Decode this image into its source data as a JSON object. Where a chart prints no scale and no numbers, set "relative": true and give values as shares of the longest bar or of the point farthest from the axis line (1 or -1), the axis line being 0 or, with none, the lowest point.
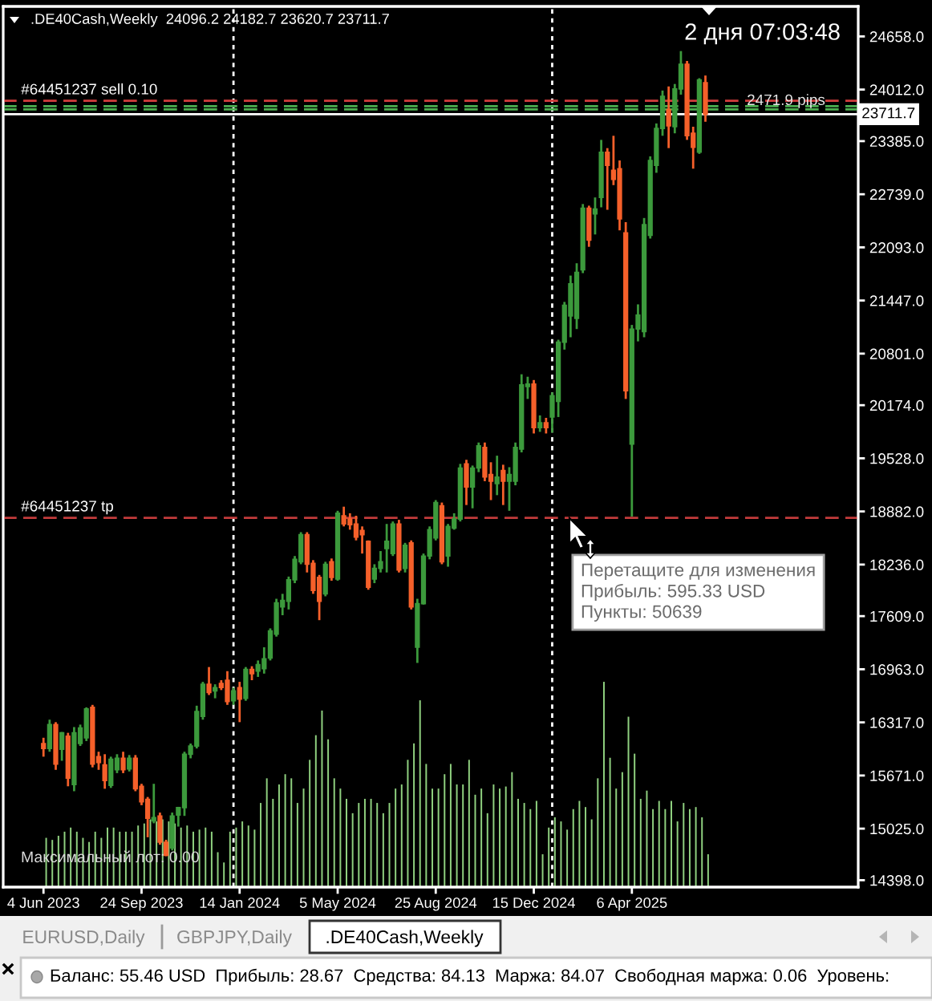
{
  "chart_data": [
    {
      "type": "candlestick",
      "title": ".DE40Cash,Weekly  24096.2 24182.7 23620.7 23711.7",
      "x": [
        "2023-06-04",
        "2023-06-11",
        "2023-06-18",
        "2023-06-25",
        "2023-07-02",
        "2023-07-09",
        "2023-07-16",
        "2023-07-23",
        "2023-07-30",
        "2023-08-06",
        "2023-08-13",
        "2023-08-20",
        "2023-08-27",
        "2023-09-03",
        "2023-09-10",
        "2023-09-17",
        "2023-09-24",
        "2023-10-01",
        "2023-10-08",
        "2023-10-15",
        "2023-10-22",
        "2023-10-29",
        "2023-11-05",
        "2023-11-12",
        "2023-11-19",
        "2023-11-26",
        "2023-12-03",
        "2023-12-10",
        "2023-12-17",
        "2023-12-24",
        "2023-12-31",
        "2024-01-07",
        "2024-01-14",
        "2024-01-21",
        "2024-01-28",
        "2024-02-04",
        "2024-02-11",
        "2024-02-18",
        "2024-02-25",
        "2024-03-03",
        "2024-03-10",
        "2024-03-17",
        "2024-03-24",
        "2024-03-31",
        "2024-04-07",
        "2024-04-14",
        "2024-04-21",
        "2024-04-28",
        "2024-05-05",
        "2024-05-12",
        "2024-05-19",
        "2024-05-26",
        "2024-06-02",
        "2024-06-09",
        "2024-06-16",
        "2024-06-23",
        "2024-06-30",
        "2024-07-07",
        "2024-07-14",
        "2024-07-21",
        "2024-07-28",
        "2024-08-04",
        "2024-08-11",
        "2024-08-18",
        "2024-08-25",
        "2024-09-01",
        "2024-09-08",
        "2024-09-15",
        "2024-09-22",
        "2024-09-29",
        "2024-10-06",
        "2024-10-13",
        "2024-10-20",
        "2024-10-27",
        "2024-11-03",
        "2024-11-10",
        "2024-11-17",
        "2024-11-24",
        "2024-12-01",
        "2024-12-08",
        "2024-12-15",
        "2024-12-22",
        "2024-12-29",
        "2025-01-05",
        "2025-01-12",
        "2025-01-19",
        "2025-01-26",
        "2025-02-02",
        "2025-02-09",
        "2025-02-16",
        "2025-02-23",
        "2025-03-02",
        "2025-03-09",
        "2025-03-16",
        "2025-03-23",
        "2025-03-30",
        "2025-04-06",
        "2025-04-13",
        "2025-04-20",
        "2025-04-27",
        "2025-05-04",
        "2025-05-11",
        "2025-05-18",
        "2025-05-25",
        "2025-06-01",
        "2025-06-08",
        "2025-06-15",
        "2025-06-22",
        "2025-06-29"
      ],
      "ohlc": [
        [
          16060,
          16130,
          15900,
          16000
        ],
        [
          16000,
          16350,
          15960,
          16290
        ],
        [
          16290,
          16320,
          15740,
          15810
        ],
        [
          15990,
          16200,
          15850,
          16190
        ],
        [
          16150,
          16190,
          15540,
          15640
        ],
        [
          15560,
          16260,
          15480,
          16190
        ],
        [
          16060,
          16290,
          16030,
          16250
        ],
        [
          16130,
          16500,
          16090,
          16480
        ],
        [
          16500,
          16530,
          15770,
          15810
        ],
        [
          15900,
          15960,
          15740,
          15830
        ],
        [
          15800,
          15930,
          15510,
          15610
        ],
        [
          15550,
          15900,
          15520,
          15870
        ],
        [
          15740,
          15930,
          15700,
          15880
        ],
        [
          15880,
          15960,
          15700,
          15740
        ],
        [
          15750,
          15920,
          15720,
          15880
        ],
        [
          15880,
          15920,
          15480,
          15510
        ],
        [
          15540,
          15570,
          15310,
          15350
        ],
        [
          15380,
          15410,
          14920,
          15150
        ],
        [
          15120,
          15570,
          15090,
          15160
        ],
        [
          15180,
          15220,
          14830,
          14860
        ],
        [
          14860,
          14890,
          14690,
          14700
        ],
        [
          14790,
          15220,
          14760,
          15180
        ],
        [
          15190,
          15290,
          15050,
          15280
        ],
        [
          15280,
          15960,
          15180,
          15930
        ],
        [
          15930,
          16060,
          15880,
          16030
        ],
        [
          16030,
          16520,
          16000,
          16450
        ],
        [
          16390,
          16810,
          16350,
          16780
        ],
        [
          16780,
          16990,
          16650,
          16680
        ],
        [
          16700,
          16780,
          16610,
          16740
        ],
        [
          16790,
          16830,
          16710,
          16740
        ],
        [
          16830,
          16940,
          16530,
          16570
        ],
        [
          16580,
          16740,
          16530,
          16700
        ],
        [
          16740,
          16810,
          16320,
          16600
        ],
        [
          16610,
          16990,
          16580,
          16960
        ],
        [
          16960,
          17000,
          16830,
          16910
        ],
        [
          16940,
          17070,
          16870,
          17020
        ],
        [
          16970,
          17230,
          16910,
          17090
        ],
        [
          17100,
          17460,
          17070,
          17430
        ],
        [
          17390,
          17820,
          17360,
          17770
        ],
        [
          17720,
          17880,
          17620,
          17800
        ],
        [
          17790,
          18090,
          17690,
          18050
        ],
        [
          18050,
          18340,
          18010,
          18300
        ],
        [
          18270,
          18630,
          18240,
          18600
        ],
        [
          18600,
          18630,
          18140,
          18240
        ],
        [
          18250,
          18290,
          17880,
          17920
        ],
        [
          18080,
          18110,
          17560,
          17790
        ],
        [
          17880,
          18270,
          17850,
          18240
        ],
        [
          18270,
          18310,
          18040,
          18080
        ],
        [
          18060,
          18890,
          18040,
          18860
        ],
        [
          18830,
          18940,
          18700,
          18730
        ],
        [
          18790,
          18860,
          18660,
          18720
        ],
        [
          18730,
          18830,
          18530,
          18570
        ],
        [
          18650,
          18700,
          18370,
          18600
        ],
        [
          18520,
          18530,
          17930,
          17960
        ],
        [
          18060,
          18240,
          18010,
          18190
        ],
        [
          18190,
          18400,
          18140,
          18270
        ],
        [
          18430,
          18730,
          18140,
          18520
        ],
        [
          18370,
          18760,
          18340,
          18730
        ],
        [
          18730,
          18780,
          18140,
          18170
        ],
        [
          18190,
          18500,
          18140,
          18470
        ],
        [
          18500,
          18530,
          17690,
          17720
        ],
        [
          17230,
          17820,
          17040,
          17760
        ],
        [
          17760,
          18370,
          17750,
          18340
        ],
        [
          18340,
          18700,
          18300,
          18660
        ],
        [
          18560,
          19020,
          18530,
          18990
        ],
        [
          18950,
          18990,
          18240,
          18270
        ],
        [
          18340,
          18730,
          18210,
          18700
        ],
        [
          18680,
          18860,
          18660,
          18790
        ],
        [
          18790,
          19460,
          18760,
          19410
        ],
        [
          19460,
          19510,
          18960,
          19180
        ],
        [
          19180,
          19440,
          18920,
          19410
        ],
        [
          19410,
          19720,
          19360,
          19680
        ],
        [
          19660,
          19720,
          19250,
          19300
        ],
        [
          19330,
          19480,
          19020,
          19250
        ],
        [
          19220,
          19560,
          19080,
          19300
        ],
        [
          19380,
          19450,
          18960,
          19250
        ],
        [
          19250,
          19420,
          18890,
          19330
        ],
        [
          19250,
          19720,
          19200,
          19660
        ],
        [
          19640,
          20550,
          19600,
          20420
        ],
        [
          20400,
          20520,
          20250,
          20430
        ],
        [
          20430,
          20480,
          19830,
          19900
        ],
        [
          19900,
          20050,
          19850,
          19960
        ],
        [
          19960,
          20020,
          19830,
          19900
        ],
        [
          20030,
          20330,
          19840,
          20290
        ],
        [
          20220,
          20970,
          20030,
          20940
        ],
        [
          20940,
          21430,
          20850,
          21390
        ],
        [
          21260,
          21750,
          21000,
          21650
        ],
        [
          21230,
          21900,
          21100,
          21790
        ],
        [
          21820,
          22620,
          21780,
          22570
        ],
        [
          22570,
          22600,
          22100,
          22180
        ],
        [
          22500,
          22700,
          22250,
          22560
        ],
        [
          22700,
          23400,
          22580,
          23250
        ],
        [
          23250,
          23300,
          22550,
          23090
        ],
        [
          23030,
          23450,
          22850,
          22920
        ],
        [
          23050,
          23150,
          22300,
          22440
        ],
        [
          22270,
          22400,
          20250,
          20350
        ],
        [
          19700,
          21150,
          18820,
          21100
        ],
        [
          21100,
          21400,
          20950,
          21270
        ],
        [
          21070,
          22450,
          21000,
          22370
        ],
        [
          22240,
          23200,
          22200,
          23150
        ],
        [
          23090,
          23600,
          23000,
          23540
        ],
        [
          23540,
          24000,
          23450,
          23930
        ],
        [
          23770,
          24050,
          23300,
          23570
        ],
        [
          23560,
          24080,
          23480,
          24020
        ],
        [
          24020,
          24480,
          23950,
          24320
        ],
        [
          24320,
          24360,
          23400,
          23450
        ],
        [
          23480,
          23560,
          23050,
          23310
        ],
        [
          23250,
          24150,
          23230,
          24130
        ],
        [
          24096.2,
          24182.7,
          23620.7,
          23711.7
        ]
      ],
      "colors": [
        "#f5602a",
        "#3c9a3c",
        "#f5602a",
        "#3c9a3c",
        "#f5602a",
        "#3c9a3c",
        "#3c9a3c",
        "#3c9a3c",
        "#f5602a",
        "#f5602a",
        "#f5602a",
        "#3c9a3c",
        "#3c9a3c",
        "#f5602a",
        "#3c9a3c",
        "#f5602a",
        "#f5602a",
        "#f5602a",
        "#3c9a3c",
        "#f5602a",
        "#f5602a",
        "#3c9a3c",
        "#3c9a3c",
        "#3c9a3c",
        "#3c9a3c",
        "#3c9a3c",
        "#3c9a3c",
        "#f5602a",
        "#3c9a3c",
        "#f5602a",
        "#f5602a",
        "#3c9a3c",
        "#f5602a",
        "#3c9a3c",
        "#f5602a",
        "#3c9a3c",
        "#3c9a3c",
        "#3c9a3c",
        "#3c9a3c",
        "#3c9a3c",
        "#3c9a3c",
        "#3c9a3c",
        "#3c9a3c",
        "#f5602a",
        "#f5602a",
        "#f5602a",
        "#3c9a3c",
        "#f5602a",
        "#3c9a3c",
        "#f5602a",
        "#f5602a",
        "#f5602a",
        "#f5602a",
        "#f5602a",
        "#3c9a3c",
        "#3c9a3c",
        "#3c9a3c",
        "#3c9a3c",
        "#f5602a",
        "#3c9a3c",
        "#f5602a",
        "#3c9a3c",
        "#3c9a3c",
        "#3c9a3c",
        "#3c9a3c",
        "#f5602a",
        "#3c9a3c",
        "#3c9a3c",
        "#3c9a3c",
        "#f5602a",
        "#3c9a3c",
        "#3c9a3c",
        "#f5602a",
        "#f5602a",
        "#3c9a3c",
        "#f5602a",
        "#3c9a3c",
        "#3c9a3c",
        "#3c9a3c",
        "#3c9a3c",
        "#f5602a",
        "#3c9a3c",
        "#f5602a",
        "#3c9a3c",
        "#3c9a3c",
        "#3c9a3c",
        "#3c9a3c",
        "#3c9a3c",
        "#3c9a3c",
        "#f5602a",
        "#3c9a3c",
        "#3c9a3c",
        "#f5602a",
        "#f5602a",
        "#f5602a",
        "#f5602a",
        "#3c9a3c",
        "#3c9a3c",
        "#3c9a3c",
        "#3c9a3c",
        "#3c9a3c",
        "#3c9a3c",
        "#f5602a",
        "#3c9a3c",
        "#3c9a3c",
        "#f5602a",
        "#f5602a",
        "#3c9a3c",
        "#f5602a"
      ],
      "xlim": [
        "2023-04-19",
        "2025-12-20T12:00"
      ],
      "xticks": [
        {
          "value": "2023-06-04",
          "label": "4 Jun 2023"
        },
        {
          "value": "2023-09-24",
          "label": "24 Sep 2023"
        },
        {
          "value": "2024-01-14",
          "label": "14 Jan 2024"
        },
        {
          "value": "2024-05-05",
          "label": "5 May 2024"
        },
        {
          "value": "2024-08-25",
          "label": "25 Aug 2024"
        },
        {
          "value": "2024-12-15",
          "label": "15 Dec 2024"
        },
        {
          "value": "2025-04-06",
          "label": "6 Apr 2025"
        }
      ],
      "ylim": [
        14314,
        25023
      ],
      "yticks": [
        {
          "value": 24658,
          "label": "24658.0"
        },
        {
          "value": 24012,
          "label": "24012.0"
        },
        {
          "value": 23385,
          "label": "23385.0"
        },
        {
          "value": 22739,
          "label": "22739.0"
        },
        {
          "value": 22093,
          "label": "22093.0"
        },
        {
          "value": 21447,
          "label": "21447.0"
        },
        {
          "value": 20801,
          "label": "20801.0"
        },
        {
          "value": 20174,
          "label": "20174.0"
        },
        {
          "value": 19528,
          "label": "19528.0"
        },
        {
          "value": 18882,
          "label": "18882.0"
        },
        {
          "value": 18236,
          "label": "18236.0"
        },
        {
          "value": 17609,
          "label": "17609.0"
        },
        {
          "value": 16963,
          "label": "16963.0"
        },
        {
          "value": 16317,
          "label": "16317.0"
        },
        {
          "value": 15671,
          "label": "15671.0"
        },
        {
          "value": 15025,
          "label": "15025.0"
        },
        {
          "value": 14398,
          "label": "14398.0"
        }
      ],
      "ref_lines": [
        {
          "axis": "x",
          "value": "2024-01-07",
          "color": "#ffffff",
          "line_style": "dotted"
        },
        {
          "axis": "x",
          "value": "2025-01-05",
          "color": "#ffffff",
          "line_style": "dotted"
        },
        {
          "axis": "y",
          "value": 23875,
          "label": "#64451237 sell 0.10",
          "color": "#d23c3c",
          "line_style": "dashed"
        },
        {
          "axis": "y",
          "value": 23810,
          "color": "#4caf50",
          "line_style": "dashed"
        },
        {
          "axis": "y",
          "value": 23770,
          "color": "#4caf50",
          "line_style": "dashed"
        },
        {
          "axis": "y",
          "value": 23711.7,
          "label": "23711.7",
          "color": "#ffffff",
          "line_style": "solid"
        },
        {
          "axis": "y",
          "value": 18805,
          "label": "#64451237 tp",
          "color": "#c23b3b",
          "line_style": "dashed"
        }
      ],
      "annotations": [
        "2 дня 07:03:48",
        "2471.9 pips",
        "Перетащите для изменения\nПрибыль: 595.33 USD\nПункты: 50639",
        "Максимальный лот: 0.00",
        "EURUSD,Daily",
        "GBPJPY,Daily",
        ".DE40Cash,Weekly",
        "Баланс: 55.46 USD  Прибыль: 28.67  Средства: 84.13  Маржа: 84.07  Свободная маржа: 0.06  Уровень:"
      ]
    },
    {
      "type": "bar",
      "relative": true,
      "color": "#8fd07f",
      "x": [
        "2023-06-04",
        "2023-06-11",
        "2023-06-18",
        "2023-06-25",
        "2023-07-02",
        "2023-07-09",
        "2023-07-16",
        "2023-07-23",
        "2023-07-30",
        "2023-08-06",
        "2023-08-13",
        "2023-08-20",
        "2023-08-27",
        "2023-09-03",
        "2023-09-10",
        "2023-09-17",
        "2023-09-24",
        "2023-10-01",
        "2023-10-08",
        "2023-10-15",
        "2023-10-22",
        "2023-10-29",
        "2023-11-05",
        "2023-11-12",
        "2023-11-19",
        "2023-11-26",
        "2023-12-03",
        "2023-12-10",
        "2023-12-17",
        "2023-12-24",
        "2023-12-31",
        "2024-01-07",
        "2024-01-14",
        "2024-01-21",
        "2024-01-28",
        "2024-02-04",
        "2024-02-11",
        "2024-02-18",
        "2024-02-25",
        "2024-03-03",
        "2024-03-10",
        "2024-03-17",
        "2024-03-24",
        "2024-03-31",
        "2024-04-07",
        "2024-04-14",
        "2024-04-21",
        "2024-04-28",
        "2024-05-05",
        "2024-05-12",
        "2024-05-19",
        "2024-05-26",
        "2024-06-02",
        "2024-06-09",
        "2024-06-16",
        "2024-06-23",
        "2024-06-30",
        "2024-07-07",
        "2024-07-14",
        "2024-07-21",
        "2024-07-28",
        "2024-08-04",
        "2024-08-11",
        "2024-08-18",
        "2024-08-25",
        "2024-09-01",
        "2024-09-08",
        "2024-09-15",
        "2024-09-22",
        "2024-09-29",
        "2024-10-06",
        "2024-10-13",
        "2024-10-20",
        "2024-10-27",
        "2024-11-03",
        "2024-11-10",
        "2024-11-17",
        "2024-11-24",
        "2024-12-01",
        "2024-12-08",
        "2024-12-15",
        "2024-12-22",
        "2024-12-29",
        "2025-01-05",
        "2025-01-12",
        "2025-01-19",
        "2025-01-26",
        "2025-02-02",
        "2025-02-09",
        "2025-02-16",
        "2025-02-23",
        "2025-03-02",
        "2025-03-09",
        "2025-03-16",
        "2025-03-23",
        "2025-03-30",
        "2025-04-06",
        "2025-04-13",
        "2025-04-20",
        "2025-04-27",
        "2025-05-04",
        "2025-05-11",
        "2025-05-18",
        "2025-05-25",
        "2025-06-01",
        "2025-06-08",
        "2025-06-15",
        "2025-06-22",
        "2025-06-29"
      ],
      "xlim": [
        "2023-04-19",
        "2025-12-20T12:00"
      ],
      "values": [
        0.24,
        0.23,
        0.25,
        0.27,
        0.29,
        0.27,
        0.24,
        0.22,
        0.27,
        0.24,
        0.29,
        0.29,
        0.27,
        0.27,
        0.27,
        0.3,
        0.31,
        0.33,
        0.32,
        0.33,
        0.32,
        0.31,
        0.29,
        0.3,
        0.27,
        0.28,
        0.29,
        0.27,
        0.17,
        0.12,
        0.27,
        0.29,
        0.32,
        0.3,
        0.28,
        0.41,
        0.53,
        0.43,
        0.5,
        0.55,
        0.53,
        0.41,
        0.48,
        0.62,
        0.74,
        0.86,
        0.72,
        0.53,
        0.48,
        0.43,
        0.36,
        0.41,
        0.43,
        0.43,
        0.41,
        0.36,
        0.41,
        0.48,
        0.5,
        0.62,
        0.7,
        0.91,
        0.6,
        0.48,
        0.48,
        0.55,
        0.6,
        0.5,
        0.5,
        0.62,
        0.45,
        0.48,
        0.36,
        0.5,
        0.48,
        0.49,
        0.56,
        0.43,
        0.41,
        0.38,
        0.42,
        0.16,
        0.29,
        0.34,
        0.32,
        0.28,
        0.38,
        0.42,
        0.39,
        0.33,
        0.53,
        1,
        0.63,
        0.48,
        0.56,
        0.83,
        0.65,
        0.43,
        0.47,
        0.38,
        0.42,
        0.38,
        0.42,
        0.32,
        0.41,
        0.38,
        0.39,
        0.34,
        0.16
      ]
    }
  ]
}
